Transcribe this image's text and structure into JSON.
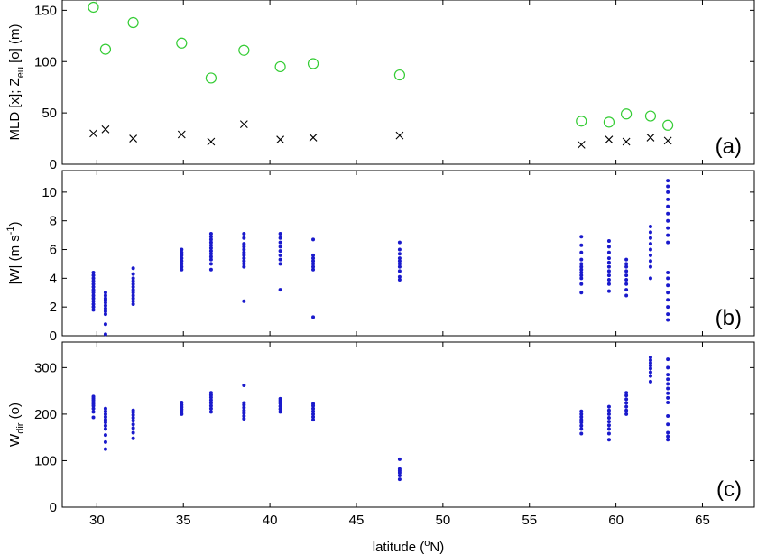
{
  "chart_data": [
    {
      "type": "scatter",
      "panel_tag": "(a)",
      "xlabel": "",
      "ylabel_parts": [
        "MLD [x]; Z",
        "eu",
        " [o] (m)"
      ],
      "xlim": [
        28,
        68
      ],
      "ylim": [
        0,
        160
      ],
      "yticks": [
        0,
        50,
        100,
        150
      ],
      "grid": false,
      "series": [
        {
          "marker": "circle",
          "color": "#33cc33",
          "x": [
            29.8,
            30.5,
            32.1,
            34.9,
            36.6,
            38.5,
            40.6,
            42.5,
            47.5,
            58.0,
            59.6,
            60.6,
            62.0,
            63.0
          ],
          "y": [
            153,
            112,
            138,
            118,
            84,
            111,
            95,
            98,
            87,
            42,
            41,
            49,
            47,
            38
          ]
        },
        {
          "marker": "cross",
          "color": "#000000",
          "x": [
            29.8,
            30.5,
            32.1,
            34.9,
            36.6,
            38.5,
            40.6,
            42.5,
            47.5,
            58.0,
            59.6,
            60.6,
            62.0,
            63.0
          ],
          "y": [
            30,
            34,
            25,
            29,
            22,
            39,
            24,
            26,
            28,
            19,
            24,
            22,
            26,
            23
          ]
        }
      ]
    },
    {
      "type": "scatter",
      "panel_tag": "(b)",
      "xlabel": "",
      "ylabel_parts": [
        "|W| (m s",
        "-1",
        ")"
      ],
      "xlim": [
        28,
        68
      ],
      "ylim": [
        0,
        11.5
      ],
      "yticks": [
        0,
        2,
        4,
        6,
        8,
        10
      ],
      "grid": false,
      "series": [
        {
          "marker": "dot",
          "color": "#1a1acc",
          "columns": [
            {
              "x": 29.8,
              "values": [
                1.8,
                2.0,
                2.2,
                2.4,
                2.6,
                2.8,
                3.0,
                3.2,
                3.4,
                3.6,
                3.8,
                4.0,
                4.2,
                4.4
              ]
            },
            {
              "x": 30.5,
              "values": [
                0.1,
                0.8,
                1.5,
                1.7,
                1.9,
                2.1,
                2.3,
                2.5,
                2.6,
                2.8,
                3.0
              ]
            },
            {
              "x": 32.1,
              "values": [
                2.2,
                2.4,
                2.6,
                2.8,
                3.0,
                3.2,
                3.4,
                3.6,
                3.8,
                4.0,
                4.3,
                4.7
              ]
            },
            {
              "x": 34.9,
              "values": [
                4.6,
                4.8,
                5.0,
                5.2,
                5.4,
                5.6,
                5.8,
                6.0
              ]
            },
            {
              "x": 36.6,
              "values": [
                4.6,
                5.0,
                5.3,
                5.5,
                5.7,
                5.9,
                6.1,
                6.3,
                6.5,
                6.7,
                6.9,
                7.1
              ]
            },
            {
              "x": 38.5,
              "values": [
                2.4,
                4.8,
                5.0,
                5.2,
                5.4,
                5.6,
                5.8,
                6.0,
                6.2,
                6.4,
                6.8,
                7.1
              ]
            },
            {
              "x": 40.6,
              "values": [
                3.2,
                5.0,
                5.3,
                5.6,
                5.9,
                6.2,
                6.5,
                6.8,
                7.1
              ]
            },
            {
              "x": 42.5,
              "values": [
                1.3,
                4.6,
                4.8,
                5.0,
                5.2,
                5.4,
                5.6,
                6.7
              ]
            },
            {
              "x": 47.5,
              "values": [
                3.9,
                4.1,
                4.5,
                4.8,
                5.0,
                5.2,
                5.4,
                5.7,
                6.0,
                6.5
              ]
            },
            {
              "x": 58.0,
              "values": [
                3.0,
                3.6,
                4.0,
                4.2,
                4.4,
                4.6,
                4.8,
                5.0,
                5.3,
                5.8,
                6.3,
                6.9
              ]
            },
            {
              "x": 59.6,
              "values": [
                3.1,
                3.6,
                3.9,
                4.2,
                4.5,
                4.8,
                5.1,
                5.4,
                5.8,
                6.2,
                6.6
              ]
            },
            {
              "x": 60.6,
              "values": [
                2.8,
                3.2,
                3.6,
                3.9,
                4.2,
                4.5,
                4.8,
                5.0,
                5.3
              ]
            },
            {
              "x": 62.0,
              "values": [
                4.0,
                4.8,
                5.2,
                5.6,
                6.0,
                6.4,
                6.8,
                7.2,
                7.6
              ]
            },
            {
              "x": 63.0,
              "values": [
                1.1,
                1.5,
                2.0,
                2.5,
                3.0,
                3.5,
                4.0,
                4.4,
                6.5,
                7.0,
                7.5,
                8.0,
                8.5,
                9.0,
                9.5,
                10.0,
                10.4,
                10.8
              ]
            }
          ]
        }
      ]
    },
    {
      "type": "scatter",
      "panel_tag": "(c)",
      "xlabel_parts": [
        "latitude (",
        "o",
        "N)"
      ],
      "ylabel_parts": [
        "W",
        "dir",
        " (o)"
      ],
      "xlim": [
        28,
        68
      ],
      "xticks": [
        30,
        35,
        40,
        45,
        50,
        55,
        60,
        65
      ],
      "ylim": [
        0,
        355
      ],
      "yticks": [
        0,
        100,
        200,
        300
      ],
      "grid": false,
      "series": [
        {
          "marker": "dot",
          "color": "#1a1acc",
          "columns": [
            {
              "x": 29.8,
              "values": [
                193,
                205,
                212,
                218,
                222,
                226,
                230,
                234,
                238
              ]
            },
            {
              "x": 30.5,
              "values": [
                125,
                140,
                155,
                168,
                175,
                182,
                188,
                194,
                200,
                206,
                212
              ]
            },
            {
              "x": 32.1,
              "values": [
                148,
                160,
                170,
                178,
                186,
                192,
                198,
                204,
                208
              ]
            },
            {
              "x": 34.9,
              "values": [
                200,
                205,
                210,
                215,
                220,
                225
              ]
            },
            {
              "x": 36.6,
              "values": [
                205,
                212,
                218,
                224,
                230,
                236,
                241,
                246
              ]
            },
            {
              "x": 38.5,
              "values": [
                190,
                196,
                202,
                208,
                214,
                220,
                224,
                262
              ]
            },
            {
              "x": 40.6,
              "values": [
                205,
                211,
                217,
                223,
                229,
                233
              ]
            },
            {
              "x": 42.5,
              "values": [
                188,
                194,
                200,
                206,
                212,
                218,
                222
              ]
            },
            {
              "x": 47.5,
              "values": [
                60,
                68,
                74,
                78,
                82,
                103
              ]
            },
            {
              "x": 58.0,
              "values": [
                158,
                168,
                175,
                182,
                188,
                194,
                200,
                206
              ]
            },
            {
              "x": 59.6,
              "values": [
                145,
                158,
                168,
                176,
                184,
                192,
                200,
                208,
                216
              ]
            },
            {
              "x": 60.6,
              "values": [
                200,
                208,
                216,
                224,
                232,
                240,
                246
              ]
            },
            {
              "x": 62.0,
              "values": [
                270,
                282,
                290,
                298,
                304,
                310,
                316,
                322
              ]
            },
            {
              "x": 63.0,
              "values": [
                145,
                152,
                160,
                178,
                196,
                225,
                235,
                245,
                255,
                265,
                275,
                285,
                300,
                318
              ]
            }
          ]
        }
      ]
    }
  ]
}
